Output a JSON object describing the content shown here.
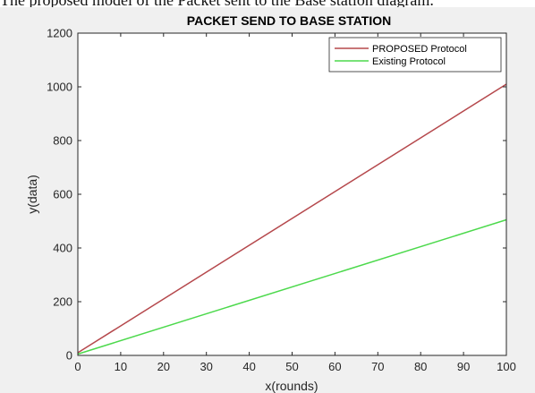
{
  "header_text": "The proposed model of the Packet sent to the Base station diagram.",
  "chart_data": {
    "type": "line",
    "title": "PACKET SEND TO BASE STATION",
    "xlabel": "x(rounds)",
    "ylabel": "y(data)",
    "xlim": [
      0,
      100
    ],
    "ylim": [
      0,
      1200
    ],
    "xticks": [
      0,
      10,
      20,
      30,
      40,
      50,
      60,
      70,
      80,
      90,
      100
    ],
    "yticks": [
      0,
      200,
      400,
      600,
      800,
      1000,
      1200
    ],
    "grid": false,
    "legend_position": "top-right",
    "series": [
      {
        "name": "PROPOSED Protocol",
        "color": "#b5484c",
        "x": [
          0,
          100
        ],
        "y": [
          10,
          1010
        ]
      },
      {
        "name": "Existing Protocol",
        "color": "#4cd94c",
        "x": [
          0,
          100
        ],
        "y": [
          5,
          505
        ]
      }
    ]
  }
}
